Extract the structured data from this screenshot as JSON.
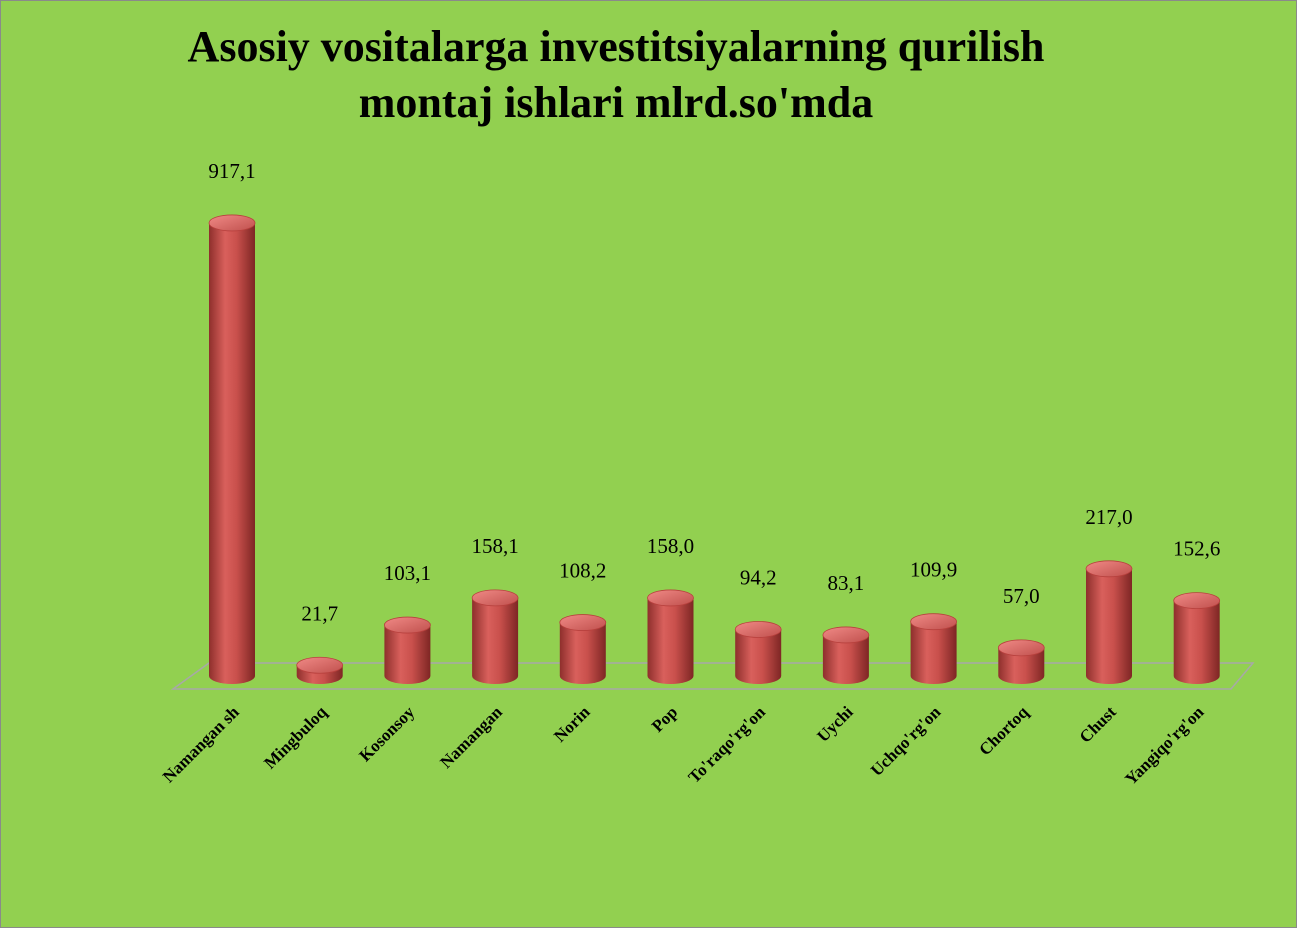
{
  "chart_data": {
    "type": "bar3d",
    "title": "Asosiy vositalarga investitsiyalarning qurilish montaj ishlari mlrd.so'mda",
    "categories": [
      "Namangan sh",
      "Mingbuloq",
      "Kosonsoy",
      "Namangan",
      "Norin",
      "Pop",
      "To'raqo'rg'on",
      "Uychi",
      "Uchqo'rg'on",
      "Chortoq",
      "Chust",
      "Yangiqo'rg'on"
    ],
    "values": [
      917.1,
      21.7,
      103.1,
      158.1,
      108.2,
      158.0,
      94.2,
      83.1,
      109.9,
      57.0,
      217.0,
      152.6
    ],
    "value_labels": [
      "917,1",
      "21,7",
      "103,1",
      "158,1",
      "108,2",
      "158,0",
      "94,2",
      "83,1",
      "109,9",
      "57,0",
      "217,0",
      "152,6"
    ],
    "color": "#c0504d",
    "ylim": [
      0,
      1000
    ]
  }
}
